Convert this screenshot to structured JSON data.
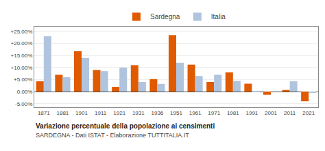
{
  "chart_data": {
    "type": "bar",
    "title": "Variazione percentuale della popolazione ai censimenti",
    "subtitle": "SARDEGNA - Dati ISTAT - Elaborazione TUTTITALIA.IT",
    "categories": [
      "1871",
      "1881",
      "1901",
      "1911",
      "1921",
      "1931",
      "1936",
      "1951",
      "1961",
      "1971",
      "1981",
      "1991",
      "2001",
      "2011",
      "2021"
    ],
    "series": [
      {
        "name": "Sardegna",
        "color": "#E05A00",
        "values": [
          4.3,
          7.0,
          16.8,
          9.0,
          2.0,
          11.0,
          5.2,
          23.5,
          11.2,
          4.0,
          8.0,
          3.3,
          -1.3,
          0.7,
          -4.0
        ]
      },
      {
        "name": "Italia",
        "color": "#B0C4DE",
        "values": [
          23.0,
          6.0,
          14.0,
          8.5,
          10.0,
          4.0,
          3.2,
          12.0,
          6.5,
          7.0,
          4.5,
          0.2,
          0.0,
          4.3,
          -0.5
        ]
      }
    ],
    "ylim": [
      -6.5,
      27.0
    ],
    "yticks": [
      {
        "value": -5,
        "label": "-5.00%"
      },
      {
        "value": 0,
        "label": "0.00%"
      },
      {
        "value": 5,
        "label": "+5.00%"
      },
      {
        "value": 10,
        "label": "+10.00%"
      },
      {
        "value": 15,
        "label": "+15.00%"
      },
      {
        "value": 20,
        "label": "+20.00%"
      },
      {
        "value": 25,
        "label": "+25.00%"
      }
    ],
    "grid": true,
    "legend": "top"
  }
}
